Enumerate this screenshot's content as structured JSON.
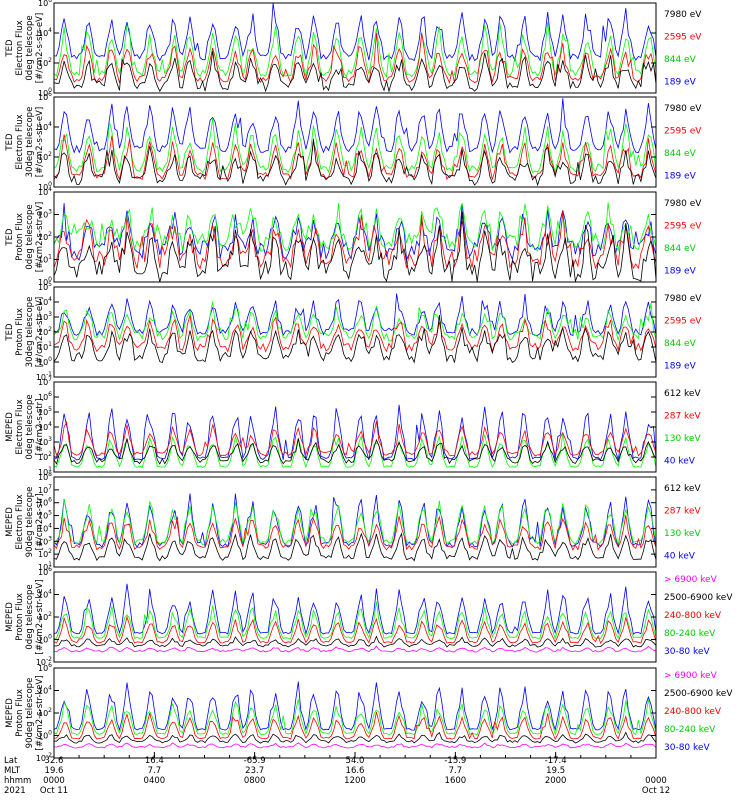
{
  "colors": {
    "blue": "#0000ff",
    "red": "#ff0000",
    "green": "#00ff00",
    "black": "#000000",
    "magenta": "#ff00ff"
  },
  "chart_data": [
    {
      "type": "line",
      "ylabel": [
        "TED",
        "Electron Flux",
        "0deg telescope",
        "[#/cm2-s-str-eV]"
      ],
      "ylog": true,
      "ylim_exp": [
        0,
        6
      ],
      "y_tick_labels": [
        "10^0",
        "10^2",
        "10^4",
        "10^6"
      ],
      "series": [
        {
          "name": "7980 eV",
          "color": "black"
        },
        {
          "name": "2595 eV",
          "color": "red"
        },
        {
          "name": "844 eV",
          "color": "green"
        },
        {
          "name": "189 eV",
          "color": "blue"
        }
      ]
    },
    {
      "type": "line",
      "ylabel": [
        "TED",
        "Electron Flux",
        "30deg telescope",
        "[#/cm2-s-str-eV]"
      ],
      "ylog": true,
      "ylim_exp": [
        0,
        6
      ],
      "y_tick_labels": [
        "10^0",
        "10^2",
        "10^4",
        "10^6"
      ],
      "series": [
        {
          "name": "7980 eV",
          "color": "black"
        },
        {
          "name": "2595 eV",
          "color": "red"
        },
        {
          "name": "844 eV",
          "color": "green"
        },
        {
          "name": "189 eV",
          "color": "blue"
        }
      ]
    },
    {
      "type": "line",
      "ylabel": [
        "TED",
        "Proton Flux",
        "0deg telescope",
        "[#/cm2-s-str-eV]"
      ],
      "ylog": true,
      "ylim_exp": [
        0,
        4
      ],
      "y_tick_labels": [
        "10^0",
        "10^1",
        "10^2",
        "10^3",
        "10^4"
      ],
      "series": [
        {
          "name": "7980 eV",
          "color": "black"
        },
        {
          "name": "2595 eV",
          "color": "red"
        },
        {
          "name": "844 eV",
          "color": "green"
        },
        {
          "name": "189 eV",
          "color": "blue"
        }
      ]
    },
    {
      "type": "line",
      "ylabel": [
        "TED",
        "Proton Flux",
        "30deg telescope",
        "[#/cm2-s-str-eV]"
      ],
      "ylog": true,
      "ylim_exp": [
        -1,
        5
      ],
      "y_tick_labels": [
        "10^-1",
        "10^0",
        "10^1",
        "10^2",
        "10^3",
        "10^4",
        "10^5"
      ],
      "series": [
        {
          "name": "7980 eV",
          "color": "black"
        },
        {
          "name": "2595 eV",
          "color": "red"
        },
        {
          "name": "844 eV",
          "color": "green"
        },
        {
          "name": "189 eV",
          "color": "blue"
        }
      ]
    },
    {
      "type": "line",
      "ylabel": [
        "MEPED",
        "Electron Flux",
        "0deg telescope",
        "[#/cm2-s-str]"
      ],
      "ylog": true,
      "ylim_exp": [
        1,
        7
      ],
      "y_tick_labels": [
        "10^1",
        "10^2",
        "10^3",
        "10^4",
        "10^5",
        "10^6",
        "10^7"
      ],
      "series": [
        {
          "name": "612 keV",
          "color": "black"
        },
        {
          "name": "287 keV",
          "color": "red"
        },
        {
          "name": "130 keV",
          "color": "green"
        },
        {
          "name": "40 keV",
          "color": "blue"
        }
      ]
    },
    {
      "type": "line",
      "ylabel": [
        "MEPED",
        "Electron Flux",
        "90deg telescope",
        "[#/cm2-s-str]"
      ],
      "ylog": true,
      "ylim_exp": [
        1,
        8
      ],
      "y_tick_labels": [
        "10^1",
        "10^2",
        "10^3",
        "10^4",
        "10^5",
        "10^6",
        "10^7",
        "10^8"
      ],
      "series": [
        {
          "name": "612 keV",
          "color": "black"
        },
        {
          "name": "287 keV",
          "color": "red"
        },
        {
          "name": "130 keV",
          "color": "green"
        },
        {
          "name": "40 keV",
          "color": "blue"
        }
      ]
    },
    {
      "type": "line",
      "ylabel": [
        "MEPED",
        "Proton Flux",
        "0deg telescope",
        "[#/cm2-s-str-keV]"
      ],
      "ylog": true,
      "ylim_exp": [
        -2,
        6
      ],
      "y_tick_labels": [
        "10^-2",
        "10^0",
        "10^2",
        "10^4",
        "10^6"
      ],
      "series": [
        {
          "name": "> 6900 keV",
          "color": "magenta"
        },
        {
          "name": "2500-6900 keV",
          "color": "black"
        },
        {
          "name": "240-800 keV",
          "color": "red"
        },
        {
          "name": "80-240 keV",
          "color": "green"
        },
        {
          "name": "30-80 keV",
          "color": "blue"
        }
      ]
    },
    {
      "type": "line",
      "ylabel": [
        "MEPED",
        "Proton Flux",
        "90deg telescope",
        "[#/cm2-s-str-keV]"
      ],
      "ylog": true,
      "ylim_exp": [
        -2,
        6
      ],
      "y_tick_labels": [
        "10^-2",
        "10^0",
        "10^2",
        "10^4",
        "10^6"
      ],
      "series": [
        {
          "name": "> 6900 keV",
          "color": "magenta"
        },
        {
          "name": "2500-6900 keV",
          "color": "black"
        },
        {
          "name": "240-800 keV",
          "color": "red"
        },
        {
          "name": "80-240 keV",
          "color": "green"
        },
        {
          "name": "30-80 keV",
          "color": "blue"
        }
      ]
    }
  ],
  "x_axis": {
    "row_labels": [
      "Lat",
      "MLT",
      "hhmm",
      "2021"
    ],
    "ticks": [
      {
        "frac": 0.0,
        "lat": "32.6",
        "mlt": "19.6",
        "hhmm": "0000",
        "date": "Oct 11"
      },
      {
        "frac": 0.1667,
        "lat": "16.4",
        "mlt": "7.7",
        "hhmm": "0400",
        "date": ""
      },
      {
        "frac": 0.3333,
        "lat": "-65.9",
        "mlt": "23.7",
        "hhmm": "0800",
        "date": ""
      },
      {
        "frac": 0.5,
        "lat": "54.0",
        "mlt": "16.6",
        "hhmm": "1200",
        "date": ""
      },
      {
        "frac": 0.6667,
        "lat": "-15.9",
        "mlt": "7.7",
        "hhmm": "1600",
        "date": ""
      },
      {
        "frac": 0.8333,
        "lat": "-17.4",
        "mlt": "19.5",
        "hhmm": "2000",
        "date": ""
      },
      {
        "frac": 1.0,
        "lat": "",
        "mlt": "",
        "hhmm": "0000",
        "date": "Oct 12"
      }
    ]
  }
}
